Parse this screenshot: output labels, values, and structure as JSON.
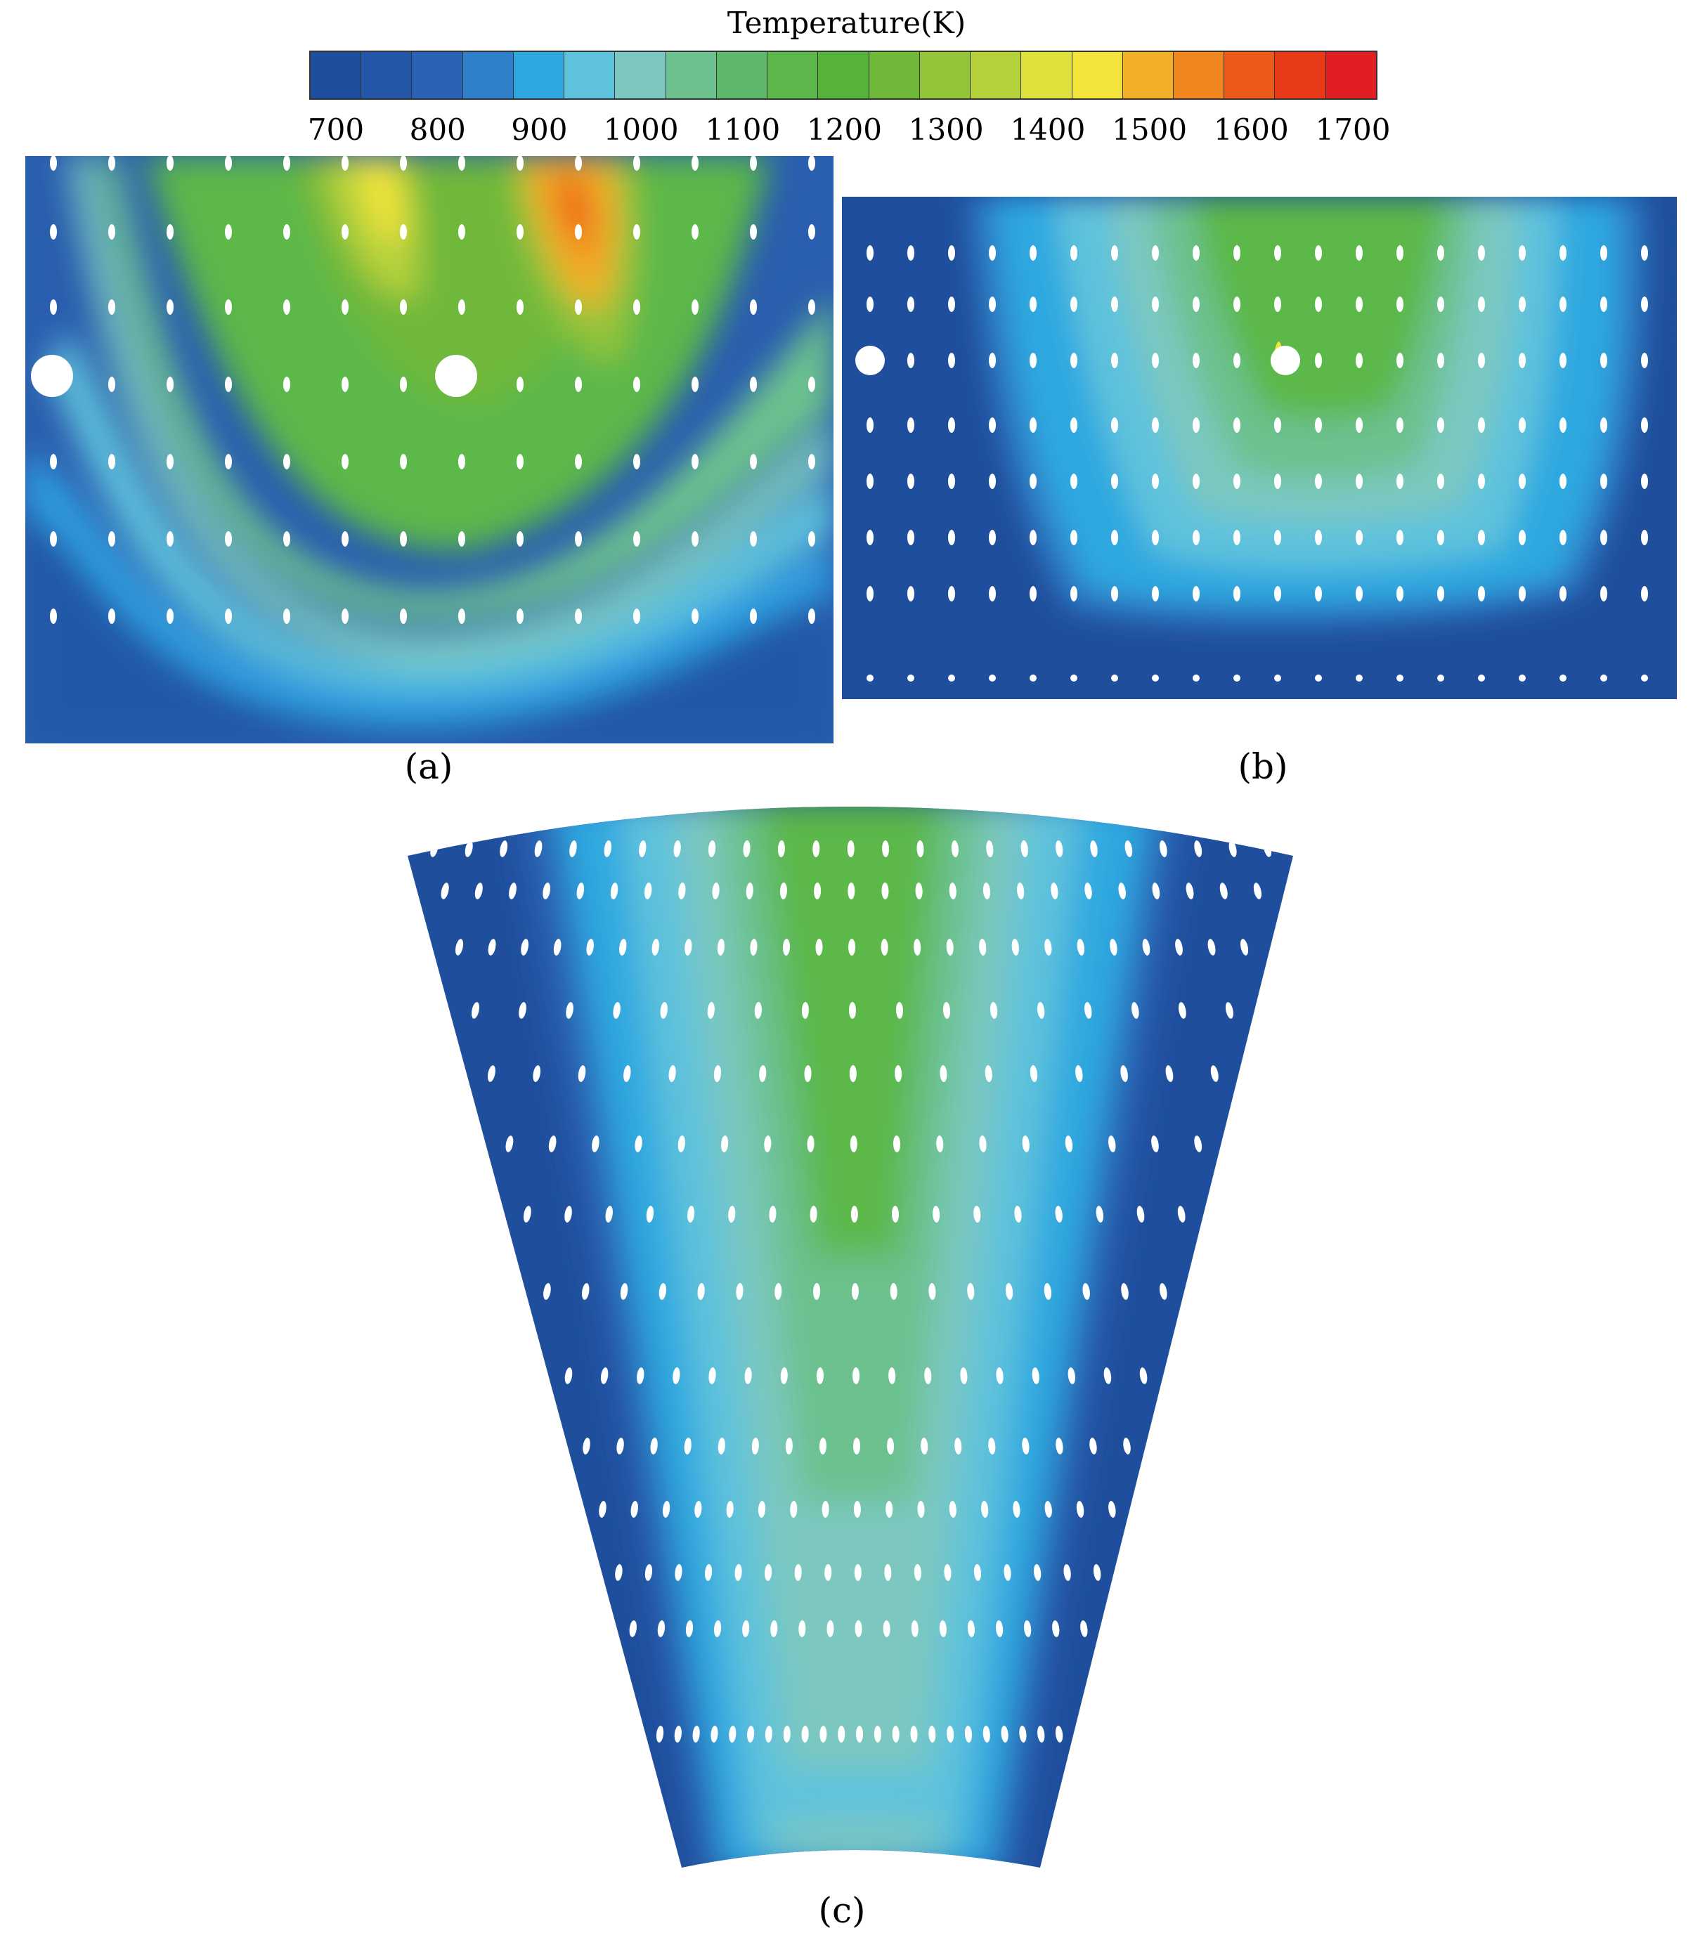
{
  "colorbar": {
    "title": "Temperature(K)",
    "ticks": [
      "700",
      "800",
      "900",
      "1000",
      "1100",
      "1200",
      "1300",
      "1400",
      "1500",
      "1600",
      "1700"
    ],
    "colors": [
      "#1f4e9c",
      "#2457a8",
      "#2a62b4",
      "#2f80c8",
      "#2fa8e0",
      "#5ec2dc",
      "#7cc8c0",
      "#6cc18e",
      "#5db86a",
      "#5cb84a",
      "#55b33a",
      "#6fb83a",
      "#93c43a",
      "#b6d23a",
      "#dfe23a",
      "#f2e43a",
      "#f2b028",
      "#f0861e",
      "#ec5a1a",
      "#e83a18",
      "#e01e24"
    ]
  },
  "panels": [
    {
      "id": "a",
      "label": "(a)"
    },
    {
      "id": "b",
      "label": "(b)"
    },
    {
      "id": "c",
      "label": "(c)"
    }
  ]
}
